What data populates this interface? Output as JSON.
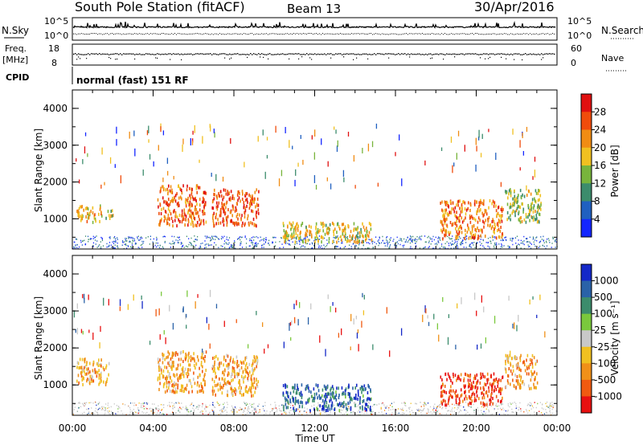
{
  "header": {
    "station": "South Pole Station (fitACF)",
    "beam": "Beam 13",
    "date": "30/Apr/2016"
  },
  "status_panel": {
    "nsky_label": "N.Sky",
    "nsearch_label": "N.Search",
    "top_left_max": "10^5",
    "top_left_min": "10^0",
    "top_right_max": "10^5",
    "top_right_min": "10^0",
    "freq_label": "Freq.",
    "freq_unit": "[MHz]",
    "freq_max": "18",
    "freq_min": "8",
    "nave_label": "Nave",
    "nave_max": "60",
    "nave_min": "0",
    "cpid_label": "CPID",
    "cpid_value": "normal (fast) 151 RF"
  },
  "chart_data": [
    {
      "type": "heatmap",
      "title": "",
      "ylabel": "Slant Range [km]",
      "xlabel": "",
      "ylim": [
        180,
        4500
      ],
      "xlim": [
        "00:00",
        "24:00"
      ],
      "y_ticks": [
        "1000",
        "2000",
        "3000",
        "4000"
      ],
      "colorbar_label": "Power [dB]",
      "colorbar_ticks": [
        "4",
        "8",
        "12",
        "16",
        "20",
        "24",
        "28"
      ],
      "colors": [
        "#1426ff",
        "#2060c0",
        "#3c8c6c",
        "#78b43c",
        "#f0c020",
        "#f08c14",
        "#f04c0c",
        "#e01010"
      ],
      "patches": [
        {
          "t0": 0.2,
          "t1": 1.5,
          "r0": 900,
          "r1": 1350,
          "level": 0.6
        },
        {
          "t0": 1.6,
          "t1": 2.0,
          "r0": 1000,
          "r1": 1300,
          "level": 0.5
        },
        {
          "t0": 4.2,
          "t1": 6.6,
          "r0": 800,
          "r1": 1900,
          "level": 0.8
        },
        {
          "t0": 6.9,
          "t1": 9.2,
          "r0": 800,
          "r1": 1800,
          "level": 0.85
        },
        {
          "t0": 10.4,
          "t1": 14.8,
          "r0": 350,
          "r1": 900,
          "level": 0.55
        },
        {
          "t0": 18.2,
          "t1": 21.3,
          "r0": 450,
          "r1": 1500,
          "level": 0.75
        },
        {
          "t0": 21.4,
          "t1": 23.2,
          "r0": 900,
          "r1": 1800,
          "level": 0.45
        }
      ]
    },
    {
      "type": "heatmap",
      "title": "",
      "ylabel": "Slant Range [km]",
      "xlabel": "Time UT",
      "ylim": [
        180,
        4500
      ],
      "xlim": [
        "00:00",
        "24:00"
      ],
      "x_ticks": [
        "00:00",
        "04:00",
        "08:00",
        "12:00",
        "16:00",
        "20:00",
        "00:00"
      ],
      "y_ticks": [
        "1000",
        "2000",
        "3000",
        "4000"
      ],
      "colorbar_label": "Velocity [m s⁻¹]",
      "colorbar_ticks": [
        "1000",
        "500",
        "100",
        "25",
        "-25",
        "-100",
        "-500",
        "-1000"
      ],
      "colors": [
        "#1428c8",
        "#2a62a8",
        "#3c8c6c",
        "#7ac83c",
        "#c8c8c8",
        "#f0c020",
        "#f09018",
        "#f05a10",
        "#e81010"
      ],
      "patches": [
        {
          "t0": 0.2,
          "t1": 1.8,
          "r0": 1000,
          "r1": 1700,
          "level": 0.7
        },
        {
          "t0": 4.2,
          "t1": 6.6,
          "r0": 800,
          "r1": 1900,
          "level": 0.7
        },
        {
          "t0": 6.9,
          "t1": 9.2,
          "r0": 700,
          "r1": 1800,
          "level": 0.7
        },
        {
          "t0": 10.4,
          "t1": 14.8,
          "r0": 300,
          "r1": 1000,
          "level": 0.15
        },
        {
          "t0": 18.2,
          "t1": 21.3,
          "r0": 450,
          "r1": 1300,
          "level": 0.95
        },
        {
          "t0": 21.4,
          "t1": 23.0,
          "r0": 900,
          "r1": 1800,
          "level": 0.7
        }
      ]
    }
  ]
}
